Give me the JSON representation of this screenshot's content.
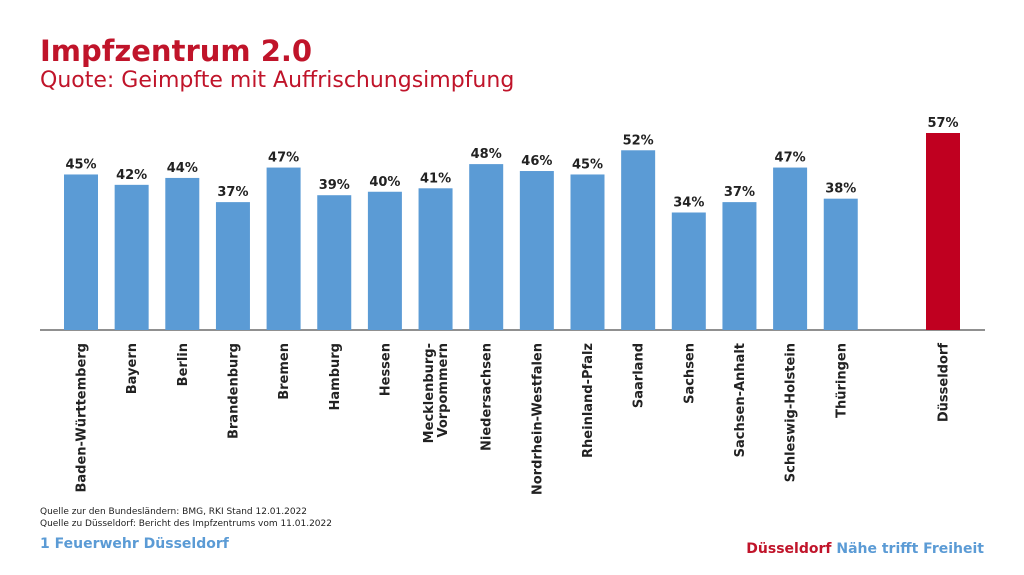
{
  "header": {
    "title": "Impfzentrum 2.0",
    "subtitle": "Quote: Geimpfte mit Auffrischungsimpfung"
  },
  "sources": [
    "Quelle zur den Bundesländern: BMG, RKI Stand 12.01.2022",
    "Quelle zu Düsseldorf: Bericht des Impfzentrums vom 11.01.2022"
  ],
  "footer": {
    "left": "1 Feuerwehr Düsseldorf",
    "brand": "Düsseldorf",
    "slogan_1": "Nähe trifft",
    "slogan_2": "Freiheit"
  },
  "colors": {
    "accent_red": "#c0142a",
    "bar_blue": "#5b9bd5",
    "highlight_bar": "#c00020"
  },
  "chart_data": {
    "type": "bar",
    "categories": [
      [
        "Baden-Württemberg"
      ],
      [
        "Bayern"
      ],
      [
        "Berlin"
      ],
      [
        "Brandenburg"
      ],
      [
        "Bremen"
      ],
      [
        "Hamburg"
      ],
      [
        "Hessen"
      ],
      [
        "Mecklenburg-",
        "Vorpommern"
      ],
      [
        "Niedersachsen"
      ],
      [
        "Nordrhein-Westfalen"
      ],
      [
        "Rheinland-Pfalz"
      ],
      [
        "Saarland"
      ],
      [
        "Sachsen"
      ],
      [
        "Sachsen-Anhalt"
      ],
      [
        "Schleswig-Holstein"
      ],
      [
        "Thüringen"
      ],
      [
        "Düsseldorf"
      ]
    ],
    "values": [
      45,
      42,
      44,
      37,
      47,
      39,
      40,
      41,
      48,
      46,
      45,
      52,
      34,
      37,
      47,
      38,
      57
    ],
    "data_labels": [
      "45%",
      "42%",
      "44%",
      "37%",
      "47%",
      "39%",
      "40%",
      "41%",
      "48%",
      "46%",
      "45%",
      "52%",
      "34%",
      "37%",
      "47%",
      "38%",
      "57%"
    ],
    "highlight": "Düsseldorf",
    "ylim": [
      0,
      57
    ],
    "grid": false,
    "legend": false
  }
}
